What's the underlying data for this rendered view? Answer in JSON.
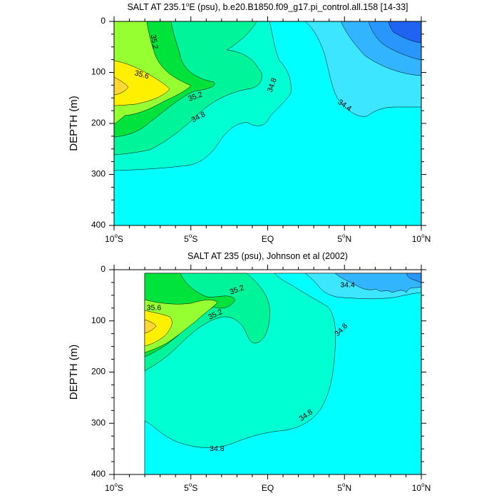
{
  "chart_data": [
    {
      "type": "heatmap",
      "subtype": "filled-contour",
      "title": "SALT AT 235.1°E (psu), b.e20.B1850.f09_g17.pi_control.all.158 [14-33]",
      "title_parts": {
        "pre": "SALT AT 235.1",
        "sup": "o",
        "post": "E (psu), b.e20.B1850.f09_g17.pi_control.all.158 [14-33]"
      },
      "ylabel": "DEPTH (m)",
      "xlim": [
        -10,
        10
      ],
      "ylim": [
        400,
        0
      ],
      "x_ticks": [
        {
          "v": -10,
          "num": "10",
          "sup": "o",
          "hem": "S"
        },
        {
          "v": -5,
          "num": "5",
          "sup": "o",
          "hem": "S"
        },
        {
          "v": 0,
          "num": "EQ",
          "sup": "",
          "hem": ""
        },
        {
          "v": 5,
          "num": "5",
          "sup": "o",
          "hem": "N"
        },
        {
          "v": 10,
          "num": "10",
          "sup": "o",
          "hem": "N"
        }
      ],
      "y_ticks": [
        {
          "v": 0,
          "label": "0"
        },
        {
          "v": 100,
          "label": "100"
        },
        {
          "v": 200,
          "label": "200"
        },
        {
          "v": 300,
          "label": "300"
        },
        {
          "v": 400,
          "label": "400"
        }
      ],
      "contour_labels": [
        {
          "text": "35.2",
          "x": -7.4,
          "y": 40,
          "angle": 80
        },
        {
          "text": "35.6",
          "x": -8.2,
          "y": 105,
          "angle": 15
        },
        {
          "text": "35.2",
          "x": -4.7,
          "y": 148,
          "angle": -20
        },
        {
          "text": "34.8",
          "x": -4.5,
          "y": 188,
          "angle": -28
        },
        {
          "text": "34.8",
          "x": 0.3,
          "y": 125,
          "angle": -70
        },
        {
          "text": "34.4",
          "x": 5.0,
          "y": 165,
          "angle": 35
        }
      ]
    },
    {
      "type": "heatmap",
      "subtype": "filled-contour",
      "title": "SALT AT 235 (psu), Johnson et al (2002)",
      "ylabel": "DEPTH (m)",
      "xlim": [
        -10,
        10
      ],
      "ylim": [
        400,
        0
      ],
      "x_ticks": [
        {
          "v": -10,
          "num": "10",
          "sup": "o",
          "hem": "S"
        },
        {
          "v": -5,
          "num": "5",
          "sup": "o",
          "hem": "S"
        },
        {
          "v": 0,
          "num": "EQ",
          "sup": "",
          "hem": ""
        },
        {
          "v": 5,
          "num": "5",
          "sup": "o",
          "hem": "N"
        },
        {
          "v": 10,
          "num": "10",
          "sup": "o",
          "hem": "N"
        }
      ],
      "y_ticks": [
        {
          "v": 0,
          "label": "0"
        },
        {
          "v": 100,
          "label": "100"
        },
        {
          "v": 200,
          "label": "200"
        },
        {
          "v": 300,
          "label": "300"
        },
        {
          "v": 400,
          "label": "400"
        }
      ],
      "contour_labels": [
        {
          "text": "35.6",
          "x": -7.4,
          "y": 75,
          "angle": 0
        },
        {
          "text": "35.2",
          "x": -2.0,
          "y": 40,
          "angle": -20
        },
        {
          "text": "35.2",
          "x": -3.4,
          "y": 88,
          "angle": -25
        },
        {
          "text": "34.8",
          "x": 4.8,
          "y": 118,
          "angle": -45
        },
        {
          "text": "34.4",
          "x": 5.2,
          "y": 30,
          "angle": 0
        },
        {
          "text": "34.8",
          "x": 2.5,
          "y": 285,
          "angle": -35
        },
        {
          "text": "34.8",
          "x": -3.3,
          "y": 350,
          "angle": 0
        }
      ]
    }
  ],
  "colors": {
    "axis": "#000000",
    "level_34_0": "#1e64f0",
    "level_34_2": "#2896fa",
    "level_34_4": "#32b4ff",
    "level_34_6": "#3ce6ff",
    "level_34_8": "#00ffff",
    "level_35_0": "#00ffd2",
    "level_35_2": "#00f59a",
    "level_35_4": "#00e33c",
    "level_35_6": "#96ff32",
    "level_35_8": "#fff000",
    "level_36_0": "#ffd732"
  }
}
